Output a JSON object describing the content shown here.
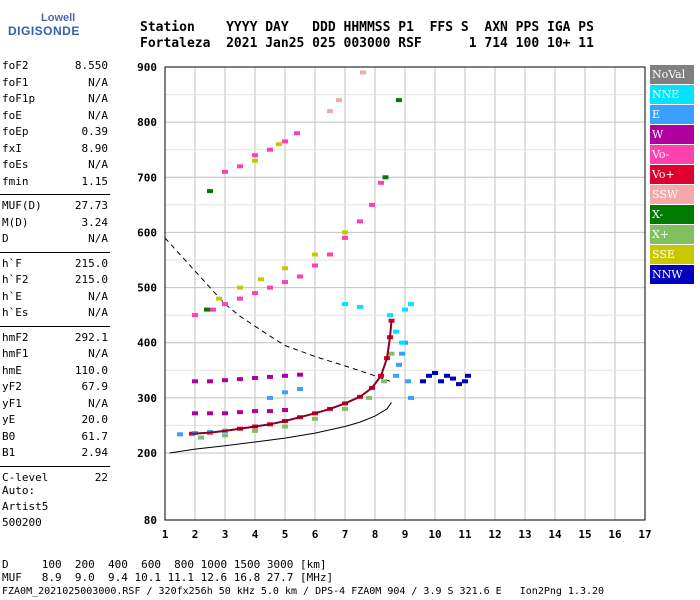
{
  "logo": {
    "line1": "Lowell",
    "line2": "DIGISONDE"
  },
  "header": {
    "line1": "Station    YYYY DAY   DDD HHMMSS P1  FFS S  AXN PPS IGA PS",
    "line2": "Fortaleza  2021 Jan25 025 003000 RSF      1 714 100 10+ 11"
  },
  "params_group1": [
    {
      "name": "foF2",
      "value": "8.550"
    },
    {
      "name": "foF1",
      "value": "N/A"
    },
    {
      "name": "foF1p",
      "value": "N/A"
    },
    {
      "name": "foE",
      "value": "N/A"
    },
    {
      "name": "foEp",
      "value": "0.39"
    },
    {
      "name": "fxI",
      "value": "8.90"
    },
    {
      "name": "foEs",
      "value": "N/A"
    },
    {
      "name": "fmin",
      "value": "1.15"
    }
  ],
  "params_group2": [
    {
      "name": "MUF(D)",
      "value": "27.73"
    },
    {
      "name": "M(D)",
      "value": "3.24"
    },
    {
      "name": "D",
      "value": "N/A"
    }
  ],
  "params_group3": [
    {
      "name": "h`F",
      "value": "215.0"
    },
    {
      "name": "h`F2",
      "value": "215.0"
    },
    {
      "name": "h`E",
      "value": "N/A"
    },
    {
      "name": "h`Es",
      "value": "N/A"
    }
  ],
  "params_group4": [
    {
      "name": "hmF2",
      "value": "292.1"
    },
    {
      "name": "hmF1",
      "value": "N/A"
    },
    {
      "name": "hmE",
      "value": "110.0"
    },
    {
      "name": "yF2",
      "value": "67.9"
    },
    {
      "name": "yF1",
      "value": "N/A"
    },
    {
      "name": "yE",
      "value": "20.0"
    },
    {
      "name": "B0",
      "value": "61.7"
    },
    {
      "name": "B1",
      "value": "2.94"
    }
  ],
  "params_group5": [
    {
      "name": "C-level",
      "value": "22"
    }
  ],
  "autoscaling": {
    "line1": "Auto:",
    "line2": "Artist5",
    "line3": "500200"
  },
  "legend": [
    {
      "label": "NoVal",
      "color": "#808080",
      "text_color": "#ffffff"
    },
    {
      "label": "NNE",
      "color": "#00e5ff",
      "text_color": "#ffffff"
    },
    {
      "label": "E",
      "color": "#3aa0ff",
      "text_color": "#ffffff"
    },
    {
      "label": "W",
      "color": "#b000a0",
      "text_color": "#ffffff"
    },
    {
      "label": "Vo-",
      "color": "#ff40b0",
      "text_color": "#ffffff"
    },
    {
      "label": "Vo+",
      "color": "#e00030",
      "text_color": "#ffffff"
    },
    {
      "label": "SSW",
      "color": "#f4a8a8",
      "text_color": "#ffffff"
    },
    {
      "label": "X-",
      "color": "#007a00",
      "text_color": "#ffffff"
    },
    {
      "label": "X+",
      "color": "#80c060",
      "text_color": "#ffffff"
    },
    {
      "label": "SSE",
      "color": "#c8c800",
      "text_color": "#ffffff"
    },
    {
      "label": "NNW",
      "color": "#0000c0",
      "text_color": "#ffffff"
    }
  ],
  "footer": {
    "d_line": "D     100  200  400  600  800 1000 1500 3000 [km]",
    "muf_line": "MUF   8.9  9.0  9.4 10.1 11.1 12.6 16.8 27.7 [MHz]",
    "file_line": "FZA0M_2021025003000.RSF / 320fx256h 50 kHz 5.0 km / DPS-4 FZA0M 904 / 3.9 S 321.6 E   Ion2Png 1.3.20"
  },
  "chart_data": {
    "type": "scatter",
    "title": "",
    "xlabel": "",
    "ylabel": "",
    "xlim": [
      1,
      17
    ],
    "ylim": [
      80,
      900
    ],
    "x_ticks": [
      1,
      2,
      3,
      4,
      5,
      6,
      7,
      8,
      9,
      10,
      11,
      12,
      13,
      14,
      15,
      16,
      17
    ],
    "y_ticks": [
      80,
      200,
      300,
      400,
      500,
      600,
      700,
      800,
      900
    ],
    "grid": true,
    "series": [
      {
        "name": "Vo+",
        "color": "#e00030",
        "points": [
          [
            1.9,
            235
          ],
          [
            2.5,
            237
          ],
          [
            3,
            240
          ],
          [
            3.5,
            244
          ],
          [
            4,
            248
          ],
          [
            4.5,
            252
          ],
          [
            5,
            258
          ],
          [
            5.5,
            265
          ],
          [
            6,
            272
          ],
          [
            6.5,
            280
          ],
          [
            7,
            290
          ],
          [
            7.5,
            302
          ],
          [
            7.9,
            318
          ],
          [
            8.2,
            340
          ],
          [
            8.4,
            372
          ],
          [
            8.5,
            410
          ],
          [
            8.55,
            440
          ]
        ]
      },
      {
        "name": "X+",
        "color": "#80c060",
        "points": [
          [
            2.2,
            228
          ],
          [
            3,
            232
          ],
          [
            4,
            240
          ],
          [
            5,
            248
          ],
          [
            6,
            262
          ],
          [
            7,
            280
          ],
          [
            7.8,
            300
          ],
          [
            8.3,
            330
          ],
          [
            8.55,
            380
          ]
        ]
      },
      {
        "name": "W",
        "color": "#b000a0",
        "points": [
          [
            2,
            330
          ],
          [
            2.5,
            330
          ],
          [
            3,
            332
          ],
          [
            3.5,
            334
          ],
          [
            4,
            336
          ],
          [
            4.5,
            338
          ],
          [
            5,
            340
          ],
          [
            5.5,
            342
          ],
          [
            2,
            272
          ],
          [
            2.5,
            272
          ],
          [
            3,
            272
          ],
          [
            3.5,
            274
          ],
          [
            4,
            276
          ],
          [
            4.5,
            276
          ],
          [
            5,
            278
          ]
        ]
      },
      {
        "name": "E",
        "color": "#3aa0ff",
        "points": [
          [
            1.5,
            234
          ],
          [
            2,
            236
          ],
          [
            2.5,
            238
          ],
          [
            3,
            240
          ],
          [
            4.5,
            300
          ],
          [
            5,
            310
          ],
          [
            5.5,
            316
          ],
          [
            8.7,
            340
          ],
          [
            8.8,
            360
          ],
          [
            8.9,
            380
          ],
          [
            9,
            400
          ],
          [
            9.1,
            330
          ],
          [
            9.2,
            300
          ]
        ]
      },
      {
        "name": "NNE",
        "color": "#00e5ff",
        "points": [
          [
            7,
            470
          ],
          [
            7.5,
            465
          ],
          [
            8.5,
            450
          ],
          [
            9,
            460
          ],
          [
            9.2,
            470
          ],
          [
            8.7,
            420
          ],
          [
            8.9,
            400
          ]
        ]
      },
      {
        "name": "NNW",
        "color": "#0000c0",
        "points": [
          [
            9.6,
            330
          ],
          [
            9.8,
            340
          ],
          [
            10,
            345
          ],
          [
            10.2,
            330
          ],
          [
            10.4,
            340
          ],
          [
            10.6,
            335
          ],
          [
            10.8,
            325
          ],
          [
            11,
            330
          ],
          [
            11.1,
            340
          ]
        ]
      },
      {
        "name": "Vo-",
        "color": "#ff40b0",
        "points": [
          [
            2,
            450
          ],
          [
            2.6,
            460
          ],
          [
            3,
            470
          ],
          [
            3.5,
            480
          ],
          [
            4,
            490
          ],
          [
            4.5,
            500
          ],
          [
            5,
            510
          ],
          [
            5.5,
            520
          ],
          [
            6,
            540
          ],
          [
            6.5,
            560
          ],
          [
            7,
            590
          ],
          [
            7.5,
            620
          ],
          [
            7.9,
            650
          ],
          [
            8.2,
            690
          ],
          [
            3,
            710
          ],
          [
            3.5,
            720
          ],
          [
            4,
            740
          ],
          [
            4.5,
            750
          ],
          [
            5,
            765
          ],
          [
            5.4,
            780
          ]
        ]
      },
      {
        "name": "X-",
        "color": "#007a00",
        "points": [
          [
            2.4,
            460
          ],
          [
            8.35,
            700
          ],
          [
            8.8,
            840
          ],
          [
            2.5,
            675
          ]
        ]
      },
      {
        "name": "SSE",
        "color": "#c8c800",
        "points": [
          [
            2.8,
            480
          ],
          [
            3.5,
            500
          ],
          [
            4.2,
            515
          ],
          [
            5,
            535
          ],
          [
            6,
            560
          ],
          [
            7,
            600
          ],
          [
            4,
            730
          ],
          [
            4.8,
            760
          ]
        ]
      },
      {
        "name": "SSW",
        "color": "#f4a8a8",
        "points": [
          [
            6.5,
            820
          ],
          [
            6.8,
            840
          ],
          [
            7.6,
            890
          ]
        ]
      }
    ],
    "profile_curve": [
      [
        1.15,
        200
      ],
      [
        2,
        207
      ],
      [
        3,
        213
      ],
      [
        4,
        220
      ],
      [
        5,
        227
      ],
      [
        6,
        236
      ],
      [
        7,
        248
      ],
      [
        7.5,
        256
      ],
      [
        8,
        267
      ],
      [
        8.4,
        280
      ],
      [
        8.55,
        292
      ]
    ],
    "muf_curve": [
      [
        1,
        590
      ],
      [
        1.5,
        560
      ],
      [
        2,
        530
      ],
      [
        2.5,
        500
      ],
      [
        3,
        470
      ],
      [
        3.5,
        448
      ],
      [
        4,
        430
      ],
      [
        4.5,
        412
      ],
      [
        5,
        395
      ],
      [
        6,
        375
      ],
      [
        7,
        358
      ],
      [
        8,
        340
      ],
      [
        8.5,
        330
      ]
    ]
  }
}
